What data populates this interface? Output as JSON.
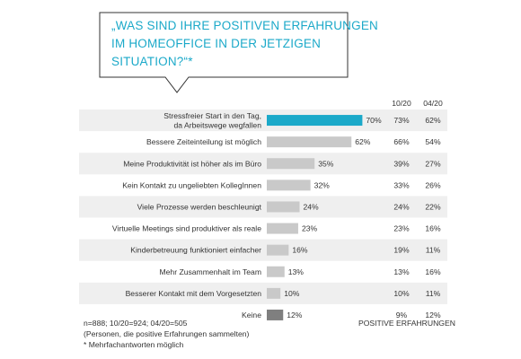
{
  "question": {
    "lines": [
      "„WAS SIND IHRE POSITIVEN ERFAHRUNGEN",
      "IM HOMEOFFICE IN DER JETZIGEN",
      "SITUATION?“*"
    ]
  },
  "colors": {
    "accent": "#1ba9c9",
    "bar": "#c9c9c9",
    "bar_dark": "#7f7f7f",
    "row_shade": "#efefef"
  },
  "chart_data": {
    "type": "bar",
    "orientation": "horizontal",
    "unit": "%",
    "categories": [
      [
        "Stressfreier Start in den Tag,",
        "da Arbeitswege wegfallen"
      ],
      [
        "Bessere Zeiteinteilung ist möglich"
      ],
      [
        "Meine Produktivität ist höher als im Büro"
      ],
      [
        "Kein Kontakt zu ungeliebten KollegInnen"
      ],
      [
        "Viele Prozesse werden beschleunigt"
      ],
      [
        "Virtuelle Meetings sind produktiver als reale"
      ],
      [
        "Kinderbetreuung funktioniert einfacher"
      ],
      [
        "Mehr Zusammenhalt im Team"
      ],
      [
        "Besserer Kontakt mit dem Vorgesetzten"
      ],
      [
        "Keine"
      ]
    ],
    "values": [
      70,
      62,
      35,
      32,
      24,
      23,
      16,
      13,
      10,
      12
    ],
    "labels": [
      "70%",
      "62%",
      "35%",
      "32%",
      "24%",
      "23%",
      "16%",
      "13%",
      "10%",
      "12%"
    ],
    "comparison_headers": [
      "10/20",
      "04/20"
    ],
    "comparison": [
      [
        "73%",
        "62%"
      ],
      [
        "66%",
        "54%"
      ],
      [
        "39%",
        "27%"
      ],
      [
        "33%",
        "26%"
      ],
      [
        "24%",
        "22%"
      ],
      [
        "23%",
        "16%"
      ],
      [
        "19%",
        "11%"
      ],
      [
        "13%",
        "16%"
      ],
      [
        "10%",
        "11%"
      ],
      [
        "9%",
        "12%"
      ]
    ],
    "highlight_index": 0,
    "dark_index": 9
  },
  "footnotes": {
    "sample": "n=888;  10/20=924;  04/20=505",
    "basis": "(Personen, die positive Erfahrungen sammelten)",
    "multi": "* Mehrfachantworten  möglich"
  },
  "section_label": "POSITIVE ERFAHRUNGEN"
}
